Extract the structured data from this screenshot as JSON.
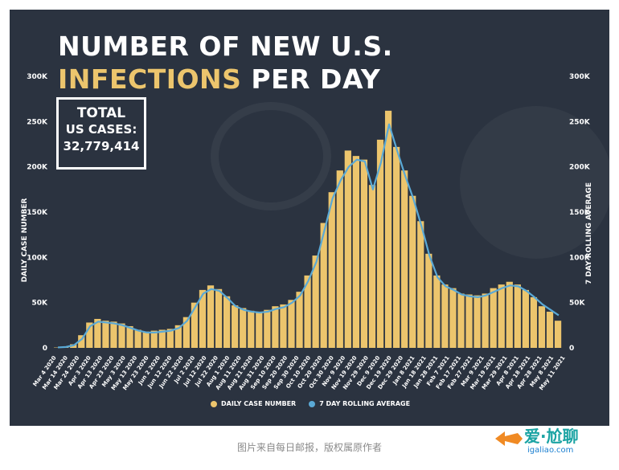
{
  "header": {
    "title_line1": "NUMBER OF NEW U.S.",
    "title_line2_accent": "INFECTIONS",
    "title_line2_rest": " PER DAY"
  },
  "total_box": {
    "label_line1": "TOTAL",
    "label_line2": "US CASES:",
    "value": "32,779,414"
  },
  "colors": {
    "background": "#2b3340",
    "bar": "#ecc56d",
    "line": "#5aa9d6",
    "text": "#ffffff"
  },
  "caption": "图片来自每日邮报，版权属原作者",
  "watermark": {
    "brand": "爱·尬聊",
    "domain": "igaliao.com"
  },
  "chart_data": {
    "type": "bar",
    "title": "NUMBER OF NEW U.S. INFECTIONS PER DAY",
    "ylabel_left": "DAILY CASE NUMBER",
    "ylabel_right": "7 DAY ROLLING AVERAGE",
    "ylim": [
      0,
      300000
    ],
    "yticks": [
      "0",
      "50K",
      "100K",
      "150K",
      "200K",
      "250K",
      "300K"
    ],
    "ytick_values": [
      0,
      50000,
      100000,
      150000,
      200000,
      250000,
      300000
    ],
    "legend": [
      "DAILY CASE NUMBER",
      "7 DAY ROLLING AVERAGE"
    ],
    "xlabels": [
      "Mar 4 2020",
      "Mar 14 2020",
      "Mar 24 2020",
      "Apr 3 2020",
      "Apr 13 2020",
      "Apr 23 2020",
      "May 3 2020",
      "May 13 2020",
      "May 23 2020",
      "Jun 2 2020",
      "Jun 12 2020",
      "Jun 22 2020",
      "Jul 2 2020",
      "Jul 12 2020",
      "Jul 22 2020",
      "Aug 1 2020",
      "Aug 11 2020",
      "Aug 21 2020",
      "Aug 31 2020",
      "Sep 10 2020",
      "Sep 20 2020",
      "Sep 30 2020",
      "Oct 10 2020",
      "Oct 20 2020",
      "Oct 30 2020",
      "Nov 9 2020",
      "Nov 19 2020",
      "Nov 29 2020",
      "Dec 9 2020",
      "Dec 19 2020",
      "Dec 29 2020",
      "Jan 8 2021",
      "Jan 18 2021",
      "Jan 28 2021",
      "Feb 7 2021",
      "Feb 17 2021",
      "Feb 27 2021",
      "Mar 9 2021",
      "Mar 19 2021",
      "Mar 29 2021",
      "Apr 8 2021",
      "Apr 18 2021",
      "Apr 28 2021",
      "May 8 2021",
      "May 11 2021"
    ],
    "rolling_average_7day": [
      500,
      1000,
      3000,
      10000,
      24000,
      29000,
      28000,
      27000,
      25000,
      22000,
      19000,
      17000,
      17000,
      18000,
      19000,
      22000,
      30000,
      45000,
      60000,
      65000,
      63000,
      55000,
      46000,
      42000,
      40000,
      39000,
      40000,
      43000,
      45000,
      50000,
      58000,
      74000,
      95000,
      130000,
      165000,
      185000,
      200000,
      208000,
      206000,
      175000,
      205000,
      247000,
      218000,
      190000,
      165000,
      135000,
      102000,
      78000,
      68000,
      64000,
      59000,
      57000,
      56000,
      58000,
      62000,
      66000,
      69000,
      68000,
      63000,
      56000,
      48000,
      42000,
      36000
    ],
    "daily_case_number": [
      400,
      1200,
      4000,
      14000,
      28000,
      32000,
      30000,
      29000,
      27000,
      24000,
      20000,
      18000,
      19000,
      20000,
      21000,
      25000,
      34000,
      50000,
      64000,
      69000,
      65000,
      57000,
      47000,
      44000,
      41000,
      40000,
      42000,
      46000,
      48000,
      53000,
      62000,
      80000,
      102000,
      138000,
      172000,
      196000,
      218000,
      212000,
      208000,
      180000,
      230000,
      262000,
      222000,
      196000,
      168000,
      140000,
      104000,
      80000,
      70000,
      66000,
      60000,
      59000,
      58000,
      60000,
      66000,
      70000,
      73000,
      70000,
      64000,
      56000,
      46000,
      40000,
      30000
    ]
  }
}
